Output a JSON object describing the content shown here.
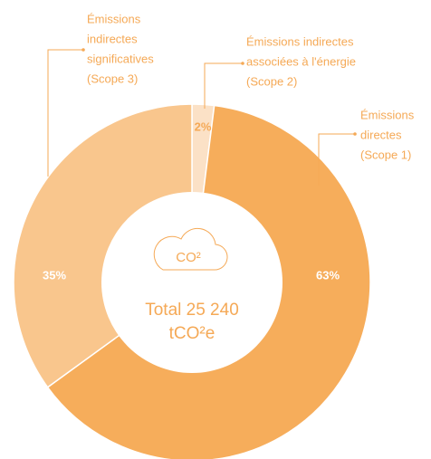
{
  "chart_data": {
    "type": "donut",
    "categories": [
      [
        "Émissions indirectes",
        "associées à l'énergie",
        "(Scope 2)"
      ],
      [
        "Émissions",
        "directes",
        "(Scope 1)"
      ],
      [
        "Émissions",
        "indirectes",
        "significatives",
        "(Scope 3)"
      ]
    ],
    "values": [
      2,
      63,
      35
    ],
    "value_labels": [
      "2%",
      "63%",
      "35%"
    ],
    "colors": [
      "#fbe1c6",
      "#f6ad5b",
      "#f9c68d"
    ],
    "icon_label": "CO²",
    "center_text": [
      "Total 25 240",
      "tCO²e"
    ]
  }
}
